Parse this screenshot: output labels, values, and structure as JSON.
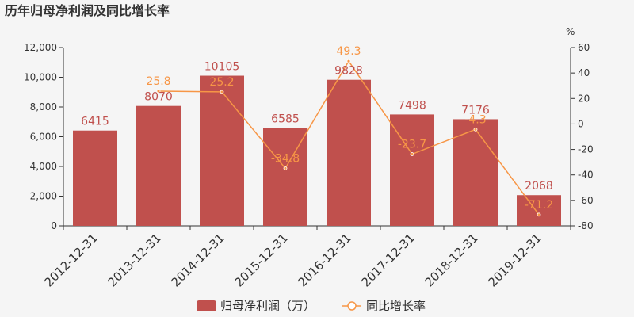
{
  "chart_data": {
    "type": "bar",
    "title": "历年归母净利润及同比增长率",
    "categories": [
      "2012-12-31",
      "2013-12-31",
      "2014-12-31",
      "2015-12-31",
      "2016-12-31",
      "2017-12-31",
      "2018-12-31",
      "2019-12-31"
    ],
    "series": [
      {
        "name": "归母净利润（万）",
        "type": "bar",
        "axis": "left",
        "values": [
          6415,
          8070,
          10105,
          6585,
          9828,
          7498,
          7176,
          2068
        ]
      },
      {
        "name": "同比增长率",
        "type": "line",
        "axis": "right",
        "values": [
          null,
          25.8,
          25.2,
          -34.8,
          49.3,
          -23.7,
          -4.3,
          -71.2
        ]
      }
    ],
    "left_axis": {
      "min": 0,
      "max": 12000,
      "ticks": [
        "0",
        "2,000",
        "4,000",
        "6,000",
        "8,000",
        "10,000",
        "12,000"
      ]
    },
    "right_axis": {
      "min": -80,
      "max": 60,
      "unit": "%",
      "ticks": [
        "-80",
        "-60",
        "-40",
        "-20",
        "0",
        "20",
        "40",
        "60"
      ]
    },
    "colors": {
      "bar": "#c0504d",
      "line": "#f79646"
    },
    "legend_position": "bottom-center"
  }
}
